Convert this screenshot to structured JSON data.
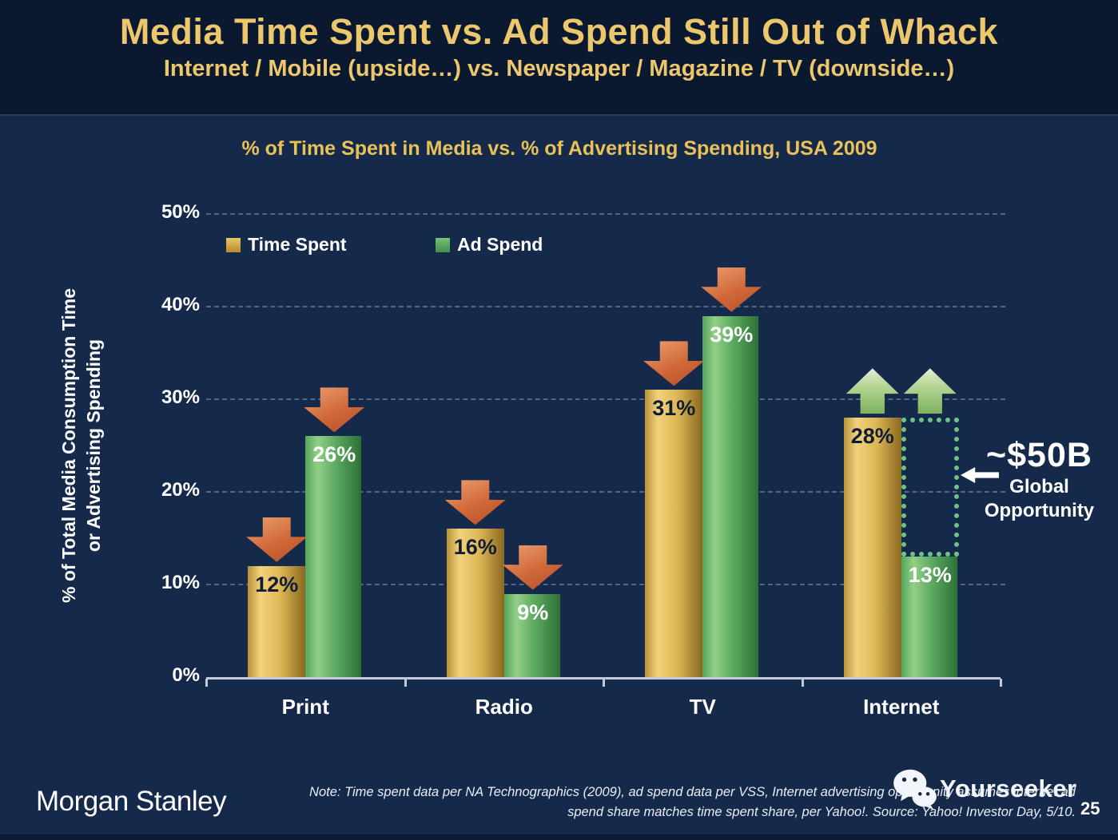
{
  "slide": {
    "title": "Media Time Spent vs. Ad Spend Still Out of Whack",
    "subtitle": "Internet / Mobile (upside…) vs. Newspaper / Magazine / TV (downside…)"
  },
  "chart_data": {
    "type": "bar",
    "title": "% of Time Spent in Media vs. % of Advertising Spending, USA 2009",
    "categories": [
      "Print",
      "Radio",
      "TV",
      "Internet"
    ],
    "series": [
      {
        "name": "Time Spent",
        "color": "#d9a93f",
        "values": [
          12,
          16,
          31,
          28
        ]
      },
      {
        "name": "Ad Spend",
        "color": "#53a25c",
        "values": [
          26,
          9,
          39,
          13
        ]
      }
    ],
    "unit": "%",
    "ylabel_line1": "% of Total Media Consumption Time",
    "ylabel_line2": "or Advertising Spending",
    "yticks": [
      "0%",
      "10%",
      "20%",
      "30%",
      "40%",
      "50%"
    ],
    "ylim": [
      0,
      50
    ],
    "grid": "dashed horizontal gridlines at each 10%",
    "legend_position": "top-left inside plot",
    "trend_arrows": [
      {
        "category": "Print",
        "time_spent": "down",
        "ad_spend": "down"
      },
      {
        "category": "Radio",
        "time_spent": "down",
        "ad_spend": "down"
      },
      {
        "category": "TV",
        "time_spent": "down",
        "ad_spend": "down"
      },
      {
        "category": "Internet",
        "time_spent": "up",
        "ad_spend": "up"
      }
    ],
    "opportunity_box": {
      "category": "Internet",
      "series": "Ad Spend",
      "from_pct": 13,
      "to_pct": 28
    },
    "annotation": {
      "headline": "~$50B",
      "line1": "Global",
      "line2": "Opportunity"
    }
  },
  "footer": {
    "logo": "Morgan Stanley",
    "note_line1": "Note: Time spent data per NA Technographics (2009), ad spend data per VSS, Internet advertising opportunity assumes internet ad",
    "note_line2": "spend share matches time spent share, per Yahoo!. Source: Yahoo! Investor Day, 5/10.",
    "watermark": "Yourseeker",
    "page_number": "25"
  },
  "colors": {
    "background": "#15294a",
    "header_background": "#0a1830",
    "title_gold": "#ecc76d",
    "bar_gold": "#d9a93f",
    "bar_green": "#53a25c",
    "down_arrow": "#cd6838",
    "up_arrow": "#a5cc84",
    "opportunity_dotted": "#6cc487",
    "axis_line": "#c2cbdd"
  }
}
